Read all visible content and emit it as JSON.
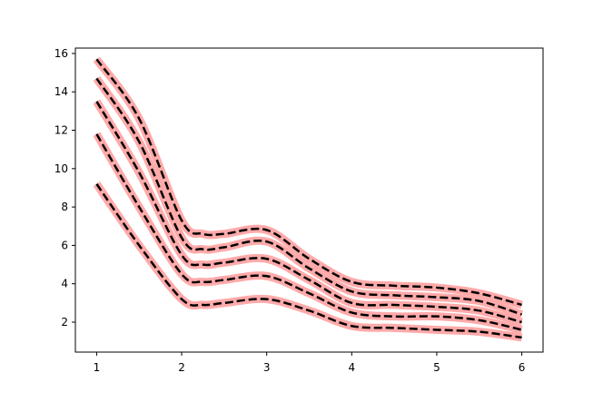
{
  "chart_data": {
    "type": "line",
    "x": [
      1,
      1.5,
      2,
      2.25,
      2.5,
      3,
      3.5,
      4,
      4.5,
      5,
      5.5,
      6
    ],
    "series": [
      {
        "color": "#ffaaaa",
        "values": [
          9.2,
          6.0,
          3.2,
          2.9,
          3.0,
          3.2,
          2.6,
          1.8,
          1.7,
          1.6,
          1.5,
          1.2
        ]
      },
      {
        "color": "#ffaaaa",
        "values": [
          11.8,
          8.0,
          4.5,
          4.1,
          4.2,
          4.4,
          3.5,
          2.5,
          2.3,
          2.3,
          2.1,
          1.6
        ]
      },
      {
        "color": "#ffaaaa",
        "values": [
          13.5,
          9.8,
          5.5,
          5.0,
          5.1,
          5.3,
          4.2,
          3.0,
          2.9,
          2.8,
          2.6,
          2.0
        ]
      },
      {
        "color": "#ffaaaa",
        "values": [
          14.7,
          11.4,
          6.4,
          5.8,
          5.9,
          6.2,
          4.8,
          3.6,
          3.4,
          3.3,
          3.1,
          2.4
        ]
      },
      {
        "color": "#ffaaaa",
        "values": [
          15.7,
          12.6,
          7.3,
          6.6,
          6.6,
          6.8,
          5.3,
          4.1,
          3.9,
          3.8,
          3.5,
          2.9
        ]
      }
    ],
    "dash_color": "#000000",
    "xlim": [
      0.75,
      6.25
    ],
    "xticks": [
      1,
      2,
      3,
      4,
      5,
      6
    ],
    "ylim": [
      0.44,
      16.28
    ],
    "yticks": [
      2,
      4,
      6,
      8,
      10,
      12,
      14,
      16
    ]
  }
}
